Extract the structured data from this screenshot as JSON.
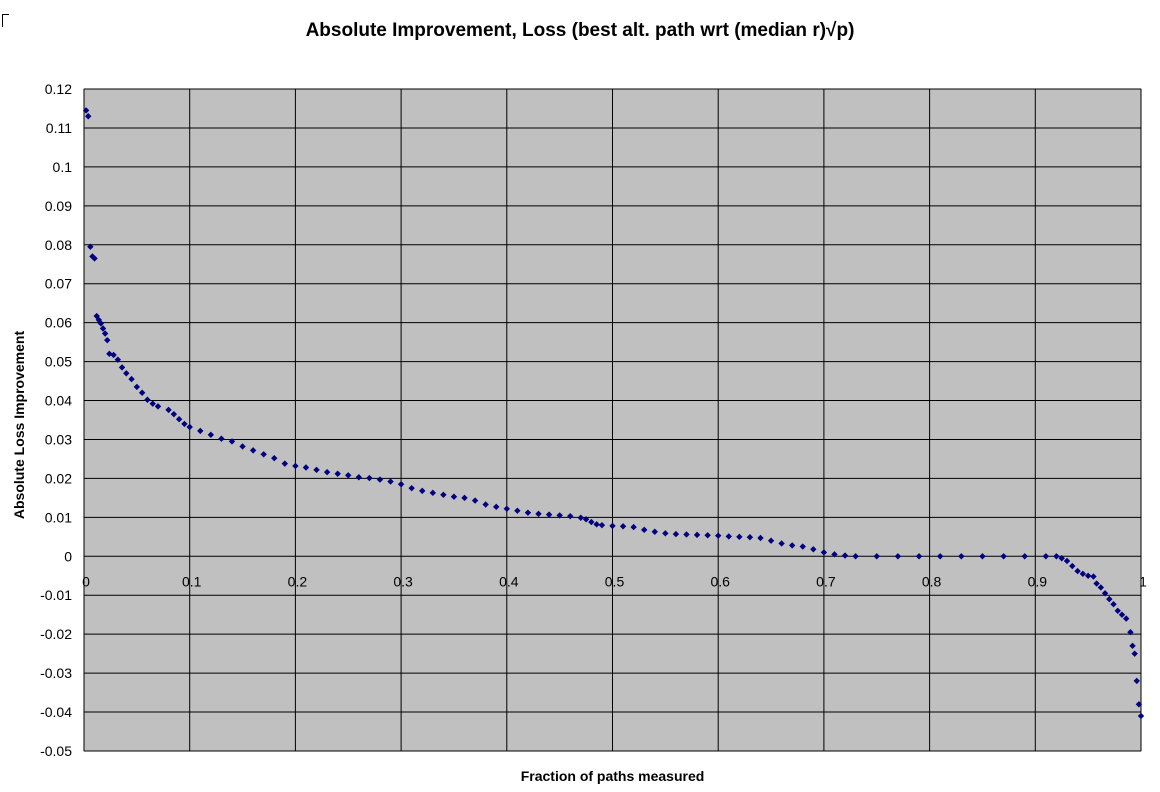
{
  "chart_data": {
    "type": "scatter",
    "title": "Absolute Improvement, Loss (best alt. path wrt (median r)√p)",
    "xlabel": "Fraction of paths measured",
    "ylabel": "Absolute Loss Improvement",
    "xlim": [
      0,
      1
    ],
    "ylim": [
      -0.05,
      0.12
    ],
    "x_ticks": [
      "0",
      "0.1",
      "0.2",
      "0.3",
      "0.4",
      "0.5",
      "0.6",
      "0.7",
      "0.8",
      "0.9",
      "1"
    ],
    "y_ticks": [
      "0.12",
      "0.11",
      "0.1",
      "0.09",
      "0.08",
      "0.07",
      "0.06",
      "0.05",
      "0.04",
      "0.03",
      "0.02",
      "0.01",
      "0",
      "-0.01",
      "-0.02",
      "-0.03",
      "-0.04",
      "-0.05"
    ],
    "grid": true,
    "plot_background": "#c0c0c0",
    "marker_color": "#000080",
    "marker": "diamond",
    "series": [
      {
        "points": [
          [
            0.002,
            0.1145
          ],
          [
            0.004,
            0.113
          ],
          [
            0.006,
            0.0795
          ],
          [
            0.008,
            0.077
          ],
          [
            0.01,
            0.0765
          ],
          [
            0.012,
            0.0617
          ],
          [
            0.014,
            0.0607
          ],
          [
            0.016,
            0.0598
          ],
          [
            0.018,
            0.0585
          ],
          [
            0.02,
            0.0572
          ],
          [
            0.022,
            0.0555
          ],
          [
            0.024,
            0.052
          ],
          [
            0.028,
            0.0517
          ],
          [
            0.032,
            0.0505
          ],
          [
            0.036,
            0.0485
          ],
          [
            0.04,
            0.047
          ],
          [
            0.045,
            0.0455
          ],
          [
            0.05,
            0.0435
          ],
          [
            0.055,
            0.042
          ],
          [
            0.06,
            0.0402
          ],
          [
            0.065,
            0.0392
          ],
          [
            0.07,
            0.0385
          ],
          [
            0.08,
            0.0376
          ],
          [
            0.085,
            0.0365
          ],
          [
            0.09,
            0.0352
          ],
          [
            0.095,
            0.034
          ],
          [
            0.1,
            0.0332
          ],
          [
            0.11,
            0.0322
          ],
          [
            0.12,
            0.0312
          ],
          [
            0.13,
            0.0302
          ],
          [
            0.14,
            0.0295
          ],
          [
            0.15,
            0.0282
          ],
          [
            0.16,
            0.0272
          ],
          [
            0.17,
            0.0262
          ],
          [
            0.18,
            0.0252
          ],
          [
            0.19,
            0.0238
          ],
          [
            0.2,
            0.0232
          ],
          [
            0.21,
            0.0228
          ],
          [
            0.22,
            0.0222
          ],
          [
            0.23,
            0.0216
          ],
          [
            0.24,
            0.0212
          ],
          [
            0.25,
            0.0208
          ],
          [
            0.26,
            0.0203
          ],
          [
            0.27,
            0.0201
          ],
          [
            0.28,
            0.0197
          ],
          [
            0.29,
            0.0192
          ],
          [
            0.3,
            0.0185
          ],
          [
            0.31,
            0.0175
          ],
          [
            0.32,
            0.0168
          ],
          [
            0.33,
            0.0163
          ],
          [
            0.34,
            0.0158
          ],
          [
            0.35,
            0.0153
          ],
          [
            0.36,
            0.015
          ],
          [
            0.37,
            0.0143
          ],
          [
            0.38,
            0.0133
          ],
          [
            0.39,
            0.0127
          ],
          [
            0.4,
            0.0122
          ],
          [
            0.41,
            0.0117
          ],
          [
            0.42,
            0.0112
          ],
          [
            0.43,
            0.0109
          ],
          [
            0.44,
            0.0107
          ],
          [
            0.45,
            0.0105
          ],
          [
            0.46,
            0.0103
          ],
          [
            0.47,
            0.0099
          ],
          [
            0.475,
            0.0095
          ],
          [
            0.48,
            0.0088
          ],
          [
            0.485,
            0.0082
          ],
          [
            0.49,
            0.008
          ],
          [
            0.5,
            0.0078
          ],
          [
            0.51,
            0.0077
          ],
          [
            0.52,
            0.0075
          ],
          [
            0.53,
            0.0068
          ],
          [
            0.54,
            0.0063
          ],
          [
            0.55,
            0.0059
          ],
          [
            0.56,
            0.0057
          ],
          [
            0.57,
            0.0056
          ],
          [
            0.58,
            0.0055
          ],
          [
            0.59,
            0.0054
          ],
          [
            0.6,
            0.0053
          ],
          [
            0.61,
            0.0051
          ],
          [
            0.62,
            0.005
          ],
          [
            0.63,
            0.0049
          ],
          [
            0.64,
            0.0047
          ],
          [
            0.65,
            0.004
          ],
          [
            0.66,
            0.0033
          ],
          [
            0.67,
            0.0028
          ],
          [
            0.68,
            0.0025
          ],
          [
            0.69,
            0.0018
          ],
          [
            0.7,
            0.001
          ],
          [
            0.71,
            0.0005
          ],
          [
            0.72,
            0.0002
          ],
          [
            0.73,
            0.0
          ],
          [
            0.75,
            0.0
          ],
          [
            0.77,
            0.0
          ],
          [
            0.79,
            0.0
          ],
          [
            0.81,
            0.0
          ],
          [
            0.83,
            0.0
          ],
          [
            0.85,
            0.0
          ],
          [
            0.87,
            0.0
          ],
          [
            0.89,
            0.0
          ],
          [
            0.91,
            0.0
          ],
          [
            0.92,
            0.0
          ],
          [
            0.925,
            -0.0005
          ],
          [
            0.93,
            -0.0012
          ],
          [
            0.935,
            -0.0025
          ],
          [
            0.94,
            -0.0038
          ],
          [
            0.945,
            -0.0045
          ],
          [
            0.95,
            -0.005
          ],
          [
            0.955,
            -0.0052
          ],
          [
            0.958,
            -0.007
          ],
          [
            0.962,
            -0.008
          ],
          [
            0.966,
            -0.0095
          ],
          [
            0.97,
            -0.011
          ],
          [
            0.974,
            -0.0123
          ],
          [
            0.978,
            -0.014
          ],
          [
            0.982,
            -0.015
          ],
          [
            0.986,
            -0.016
          ],
          [
            0.99,
            -0.0195
          ],
          [
            0.992,
            -0.023
          ],
          [
            0.994,
            -0.025
          ],
          [
            0.996,
            -0.032
          ],
          [
            0.998,
            -0.038
          ],
          [
            1.0,
            -0.041
          ]
        ]
      }
    ]
  }
}
